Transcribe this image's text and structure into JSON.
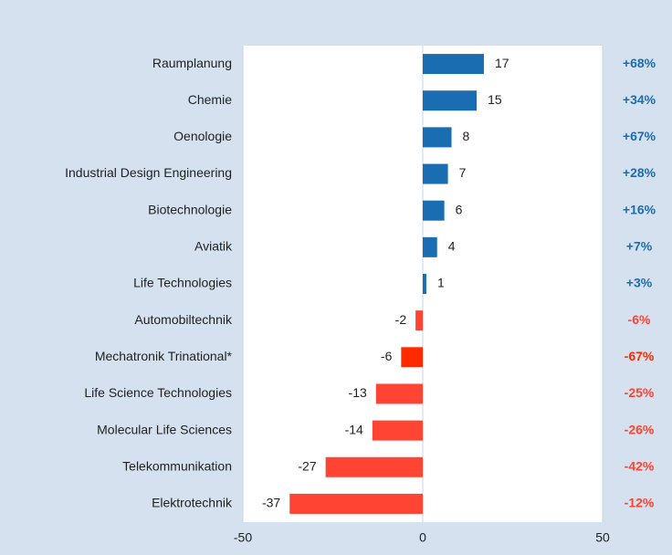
{
  "chart_data": {
    "type": "bar",
    "orientation": "horizontal",
    "categories": [
      "Raumplanung",
      "Chemie",
      "Oenologie",
      "Industrial Design Engineering",
      "Biotechnologie",
      "Aviatik",
      "Life Technologies",
      "Automobiltechnik",
      "Mechatronik Trinational*",
      "Life Science Technologies",
      "Molecular Life Sciences",
      "Telekommunikation",
      "Elektrotechnik"
    ],
    "values": [
      17,
      15,
      8,
      7,
      6,
      4,
      1,
      -2,
      -6,
      -13,
      -14,
      -27,
      -37
    ],
    "colors": [
      "#1a6db0",
      "#1a6db0",
      "#1a6db0",
      "#1a6db0",
      "#1a6db0",
      "#1a6db0",
      "#1a6db0",
      "#ff4433",
      "#ff2a00",
      "#ff4433",
      "#ff4433",
      "#ff4433",
      "#ff4433"
    ],
    "changes": [
      "+68%",
      "+34%",
      "+67%",
      "+28%",
      "+16%",
      "+7%",
      "+3%",
      "-6%",
      "-67%",
      "-25%",
      "-26%",
      "-42%",
      "-12%"
    ],
    "xlim": [
      -50,
      50
    ],
    "xticks": [
      -50,
      0,
      50
    ]
  }
}
